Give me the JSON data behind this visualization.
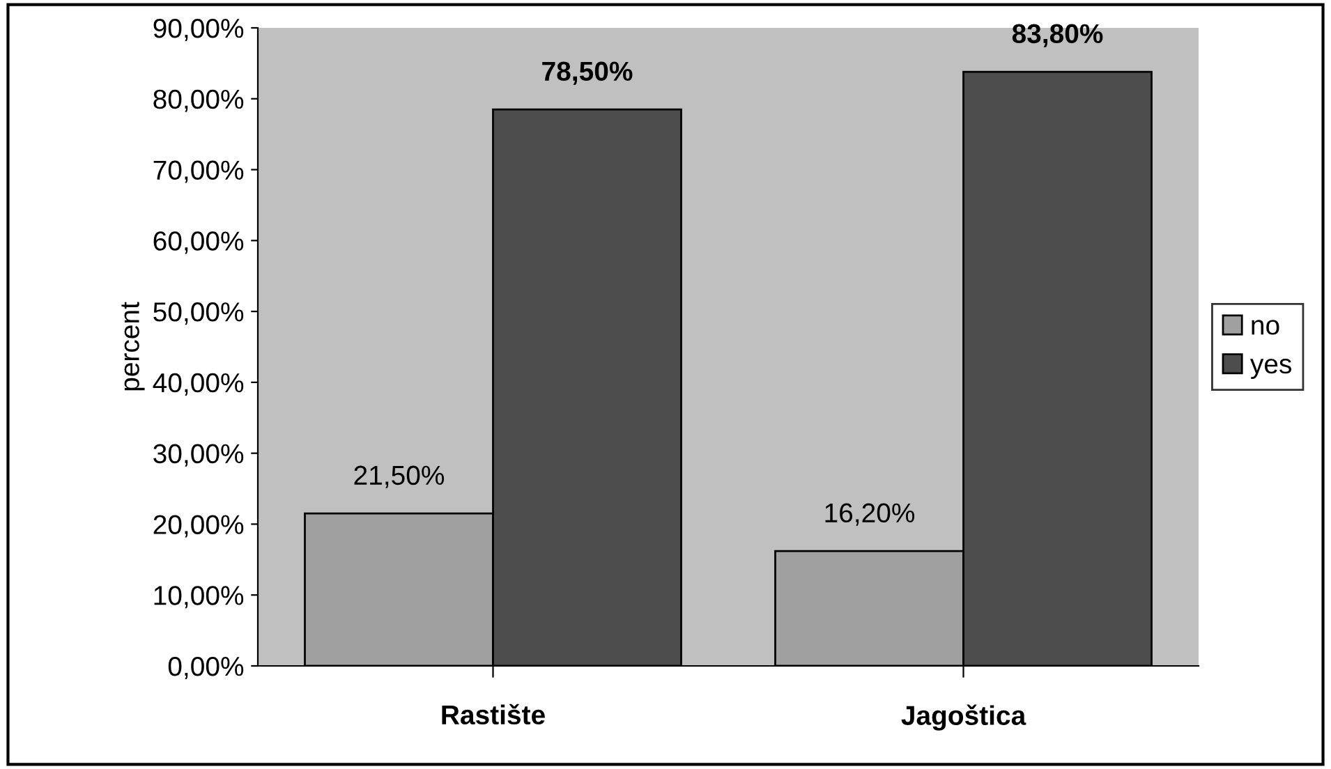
{
  "chart_data": {
    "type": "bar",
    "ylabel": "percent",
    "categories": [
      "Rastište",
      "Jagoštica"
    ],
    "series": [
      {
        "name": "no",
        "color": "#a0a0a0",
        "values": [
          21.5,
          16.2
        ],
        "value_labels": [
          "21,50%",
          "16,20%"
        ]
      },
      {
        "name": "yes",
        "color": "#4d4d4d",
        "values": [
          78.5,
          83.8
        ],
        "value_labels": [
          "78,50%",
          "83,80%"
        ]
      }
    ],
    "ylim": [
      0,
      90
    ],
    "yticks": [
      {
        "value": 0,
        "label": "0,00%"
      },
      {
        "value": 10,
        "label": "10,00%"
      },
      {
        "value": 20,
        "label": "20,00%"
      },
      {
        "value": 30,
        "label": "30,00%"
      },
      {
        "value": 40,
        "label": "40,00%"
      },
      {
        "value": 50,
        "label": "50,00%"
      },
      {
        "value": 60,
        "label": "60,00%"
      },
      {
        "value": 70,
        "label": "70,00%"
      },
      {
        "value": 80,
        "label": "80,00%"
      },
      {
        "value": 90,
        "label": "90,00%"
      }
    ],
    "grid": false,
    "legend": "right"
  }
}
